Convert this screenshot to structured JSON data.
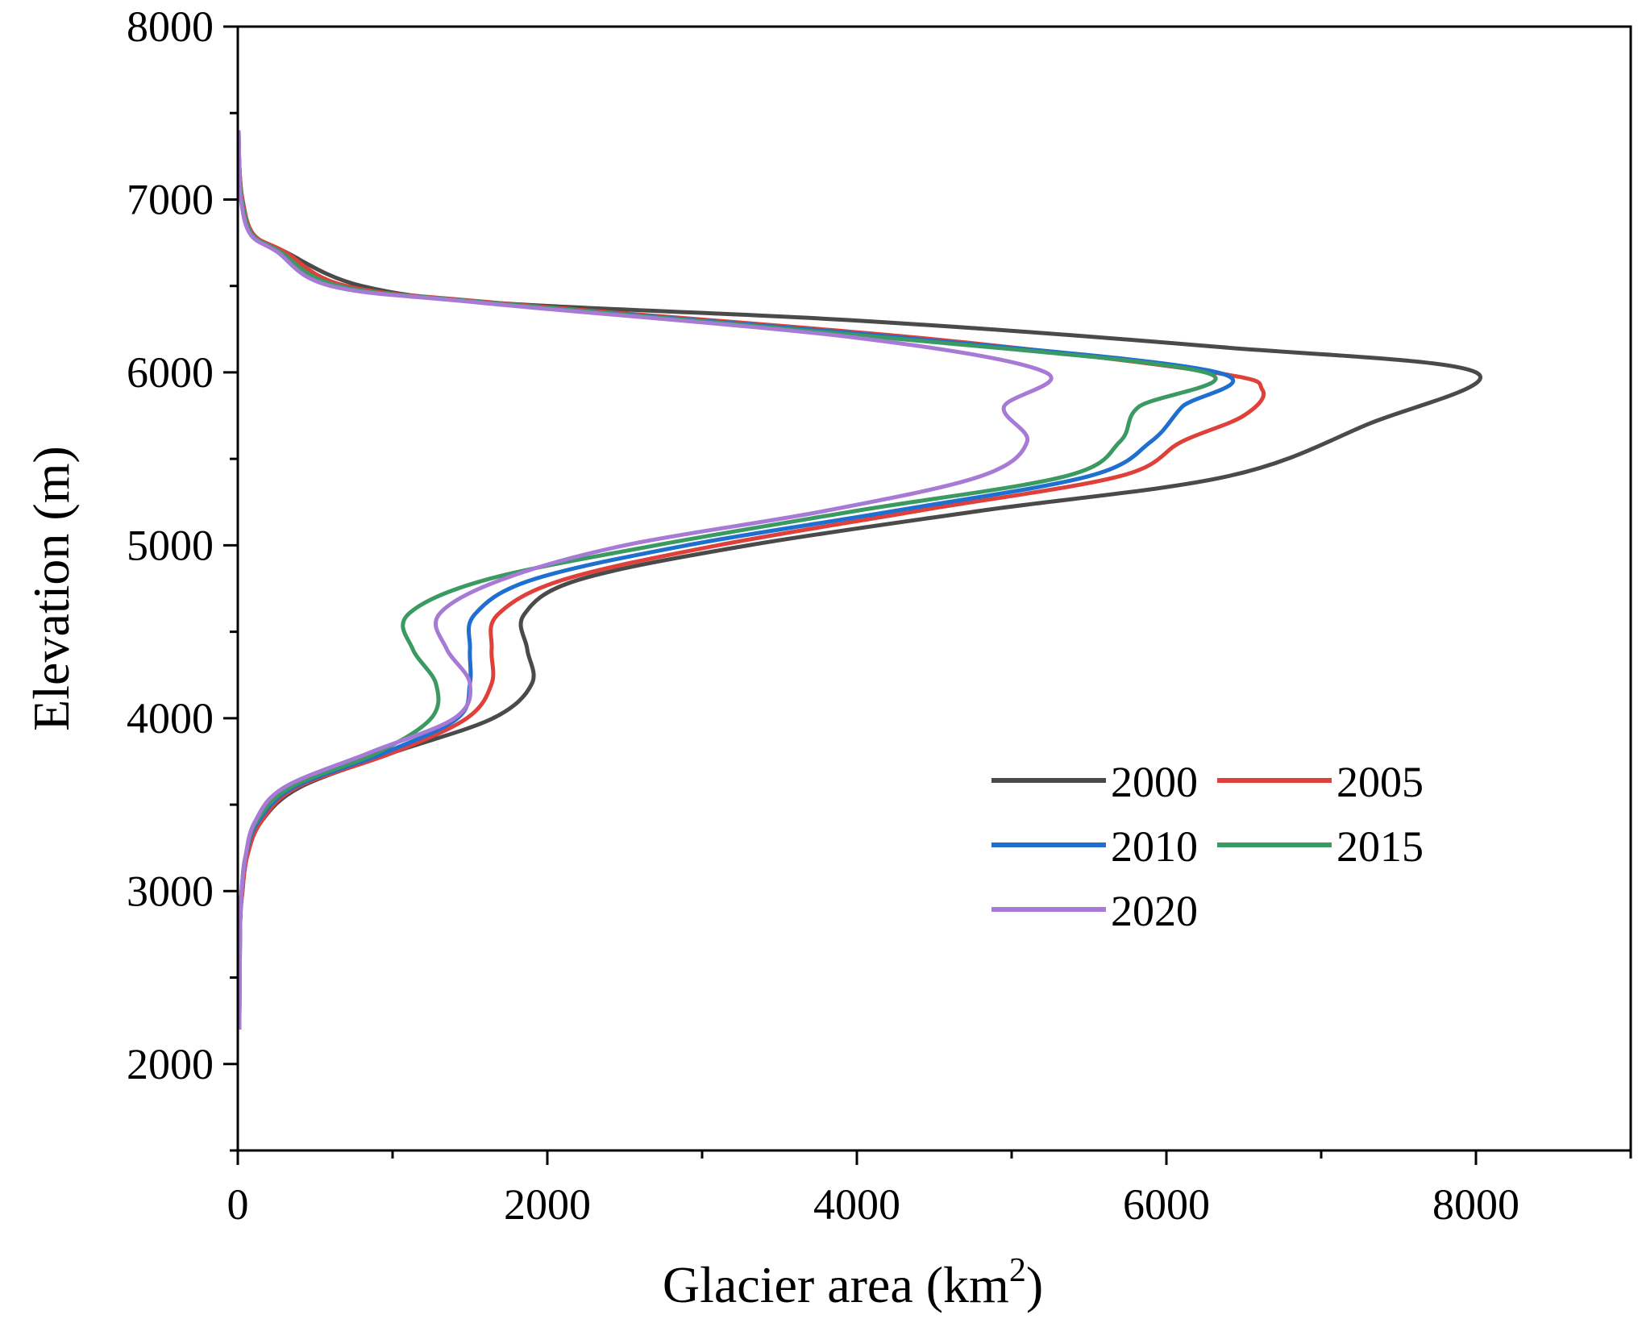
{
  "chart_data": {
    "type": "line",
    "title": "",
    "xlabel": "Glacier area (km",
    "xlabel_sup": "2",
    "xlabel_end": ")",
    "ylabel": "Elevation (m)",
    "xlim": [
      0,
      9000
    ],
    "ylim": [
      1500,
      8000
    ],
    "x_ticks": [
      0,
      2000,
      4000,
      6000,
      8000
    ],
    "x_tick_labels": [
      "0",
      "2000",
      "4000",
      "6000",
      "8000"
    ],
    "x_minor_ticks": [
      1000,
      3000,
      5000,
      7000,
      9000
    ],
    "y_ticks": [
      2000,
      3000,
      4000,
      5000,
      6000,
      7000,
      8000
    ],
    "y_tick_labels": [
      "2000",
      "3000",
      "4000",
      "5000",
      "6000",
      "7000",
      "8000"
    ],
    "y_minor_ticks": [
      1500,
      2500,
      3500,
      4500,
      5500,
      6500,
      7500
    ],
    "grid": false,
    "legend_position": "center-right",
    "series": [
      {
        "name": "2000",
        "color": "#4a4a4a",
        "points": [
          [
            10,
            2200
          ],
          [
            15,
            2800
          ],
          [
            30,
            3000
          ],
          [
            60,
            3200
          ],
          [
            150,
            3400
          ],
          [
            400,
            3600
          ],
          [
            1000,
            3800
          ],
          [
            1650,
            4000
          ],
          [
            1900,
            4200
          ],
          [
            1870,
            4400
          ],
          [
            1850,
            4600
          ],
          [
            2200,
            4800
          ],
          [
            3300,
            5000
          ],
          [
            4800,
            5200
          ],
          [
            6400,
            5400
          ],
          [
            7300,
            5700
          ],
          [
            8000,
            6000
          ],
          [
            6300,
            6150
          ],
          [
            4000,
            6300
          ],
          [
            1700,
            6400
          ],
          [
            800,
            6500
          ],
          [
            300,
            6700
          ],
          [
            100,
            6800
          ],
          [
            30,
            7000
          ],
          [
            10,
            7200
          ],
          [
            5,
            7400
          ]
        ]
      },
      {
        "name": "2005",
        "color": "#e0403a",
        "points": [
          [
            10,
            2200
          ],
          [
            15,
            2800
          ],
          [
            30,
            3000
          ],
          [
            60,
            3200
          ],
          [
            150,
            3400
          ],
          [
            380,
            3600
          ],
          [
            1000,
            3800
          ],
          [
            1480,
            4000
          ],
          [
            1640,
            4200
          ],
          [
            1640,
            4400
          ],
          [
            1680,
            4600
          ],
          [
            2100,
            4800
          ],
          [
            3100,
            5000
          ],
          [
            4400,
            5200
          ],
          [
            5700,
            5400
          ],
          [
            6100,
            5600
          ],
          [
            6500,
            5750
          ],
          [
            6620,
            5900
          ],
          [
            6300,
            6000
          ],
          [
            4400,
            6200
          ],
          [
            1700,
            6400
          ],
          [
            700,
            6500
          ],
          [
            300,
            6700
          ],
          [
            100,
            6800
          ],
          [
            30,
            7000
          ],
          [
            10,
            7200
          ],
          [
            5,
            7400
          ]
        ]
      },
      {
        "name": "2010",
        "color": "#1f6fd1",
        "points": [
          [
            10,
            2200
          ],
          [
            15,
            2800
          ],
          [
            25,
            3000
          ],
          [
            50,
            3200
          ],
          [
            130,
            3400
          ],
          [
            360,
            3600
          ],
          [
            950,
            3800
          ],
          [
            1420,
            4000
          ],
          [
            1500,
            4200
          ],
          [
            1500,
            4400
          ],
          [
            1530,
            4600
          ],
          [
            1900,
            4800
          ],
          [
            2900,
            5000
          ],
          [
            4250,
            5200
          ],
          [
            5500,
            5400
          ],
          [
            5900,
            5600
          ],
          [
            6100,
            5800
          ],
          [
            6330,
            6000
          ],
          [
            4300,
            6200
          ],
          [
            1650,
            6400
          ],
          [
            650,
            6500
          ],
          [
            270,
            6700
          ],
          [
            90,
            6800
          ],
          [
            25,
            7000
          ],
          [
            10,
            7200
          ],
          [
            5,
            7400
          ]
        ]
      },
      {
        "name": "2015",
        "color": "#3a9a62",
        "points": [
          [
            10,
            2200
          ],
          [
            15,
            2800
          ],
          [
            25,
            3000
          ],
          [
            50,
            3200
          ],
          [
            120,
            3400
          ],
          [
            340,
            3600
          ],
          [
            900,
            3800
          ],
          [
            1250,
            4000
          ],
          [
            1280,
            4200
          ],
          [
            1130,
            4400
          ],
          [
            1100,
            4600
          ],
          [
            1600,
            4800
          ],
          [
            2700,
            5000
          ],
          [
            4000,
            5200
          ],
          [
            5350,
            5400
          ],
          [
            5700,
            5600
          ],
          [
            5820,
            5800
          ],
          [
            6250,
            6000
          ],
          [
            4200,
            6200
          ],
          [
            1650,
            6400
          ],
          [
            650,
            6500
          ],
          [
            270,
            6700
          ],
          [
            90,
            6800
          ],
          [
            25,
            7000
          ],
          [
            10,
            7200
          ],
          [
            5,
            7400
          ]
        ]
      },
      {
        "name": "2020",
        "color": "#a77ad6",
        "points": [
          [
            10,
            2200
          ],
          [
            15,
            2800
          ],
          [
            25,
            3000
          ],
          [
            50,
            3200
          ],
          [
            110,
            3400
          ],
          [
            300,
            3600
          ],
          [
            850,
            3800
          ],
          [
            1400,
            4000
          ],
          [
            1500,
            4200
          ],
          [
            1350,
            4400
          ],
          [
            1300,
            4600
          ],
          [
            1700,
            4800
          ],
          [
            2500,
            5000
          ],
          [
            3800,
            5200
          ],
          [
            4800,
            5400
          ],
          [
            5100,
            5600
          ],
          [
            4950,
            5800
          ],
          [
            5220,
            6000
          ],
          [
            4000,
            6200
          ],
          [
            1600,
            6400
          ],
          [
            600,
            6500
          ],
          [
            250,
            6700
          ],
          [
            80,
            6800
          ],
          [
            20,
            7000
          ],
          [
            10,
            7200
          ],
          [
            5,
            7400
          ]
        ]
      }
    ]
  }
}
